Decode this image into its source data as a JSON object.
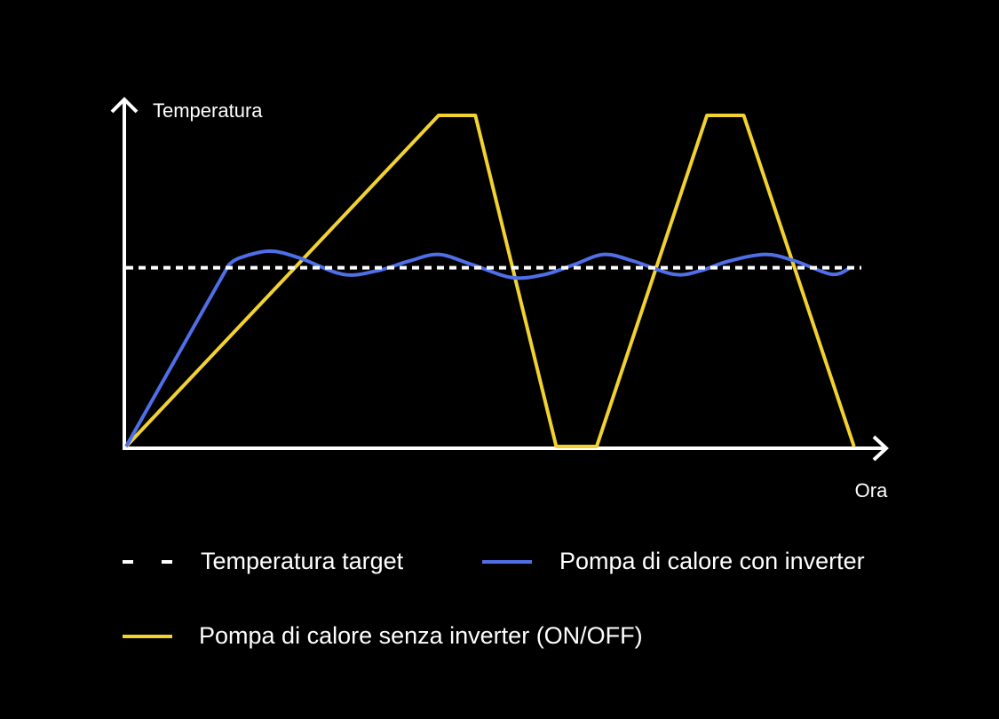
{
  "chart_data": {
    "type": "line",
    "xlabel": "Ora",
    "ylabel": "Temperatura",
    "x_ticks": false,
    "y_ticks": false,
    "grid": false,
    "legend_placement": "bottom",
    "series": [
      {
        "name": "Temperatura target",
        "style": "dashed",
        "color": "#FFFFFF",
        "points": [
          [
            0,
            54
          ],
          [
            100,
            54
          ]
        ]
      },
      {
        "name": "Pompa di calore con inverter",
        "style": "solid",
        "color": "#4F6FE8",
        "points": [
          [
            0,
            0
          ],
          [
            14,
            55
          ],
          [
            15.5,
            57
          ],
          [
            19.5,
            59
          ],
          [
            23.5,
            57
          ],
          [
            29.5,
            52
          ],
          [
            34,
            53
          ],
          [
            38.5,
            56
          ],
          [
            42.5,
            58
          ],
          [
            47,
            55
          ],
          [
            52.5,
            51
          ],
          [
            57,
            52
          ],
          [
            61,
            55
          ],
          [
            65,
            58
          ],
          [
            69,
            56
          ],
          [
            74.5,
            52
          ],
          [
            78,
            53
          ],
          [
            82,
            56
          ],
          [
            87,
            58
          ],
          [
            91,
            56
          ],
          [
            96,
            52
          ],
          [
            98.5,
            54
          ]
        ]
      },
      {
        "name": "Pompa di calore senza inverter (ON/OFF)",
        "style": "solid",
        "color": "#F2D230",
        "points": [
          [
            0,
            0
          ],
          [
            42.5,
            100
          ],
          [
            47.5,
            100
          ],
          [
            58.5,
            0
          ],
          [
            64,
            0
          ],
          [
            79,
            100
          ],
          [
            84,
            100
          ],
          [
            99,
            0
          ]
        ]
      }
    ],
    "xlim": [
      0,
      100
    ],
    "ylim": [
      0,
      100
    ]
  },
  "legend": [
    {
      "label": "Temperatura target",
      "swatch": "dashed",
      "color": "#FFFFFF"
    },
    {
      "label": "Pompa di calore con inverter",
      "swatch": "solid",
      "color": "#4F6FE8"
    },
    {
      "label": "Pompa di calore senza inverter (ON/OFF)",
      "swatch": "solid",
      "color": "#F2D230"
    }
  ]
}
